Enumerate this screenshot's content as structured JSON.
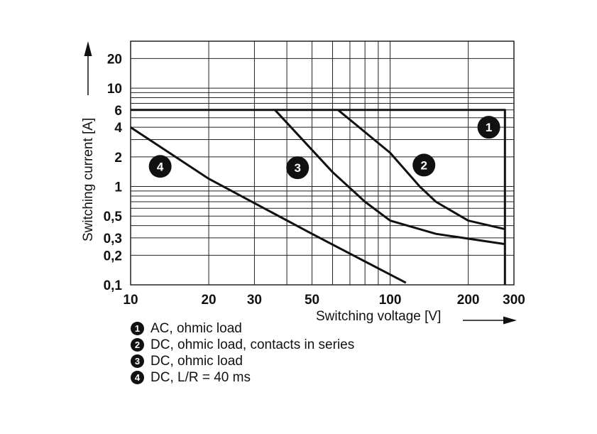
{
  "chart_data": {
    "type": "line",
    "title": "",
    "xlabel": "Switching voltage [V]",
    "ylabel": "Switching current [A]",
    "xscale": "log",
    "yscale": "log",
    "xlim": [
      10,
      300
    ],
    "ylim": [
      0.1,
      30
    ],
    "x_ticks": [
      10,
      20,
      30,
      50,
      100,
      200,
      300
    ],
    "x_tick_labels": [
      "10",
      "20",
      "30",
      "50",
      "100",
      "200",
      "300"
    ],
    "y_ticks": [
      0.1,
      0.2,
      0.3,
      0.5,
      1,
      2,
      4,
      6,
      10,
      20
    ],
    "y_tick_labels": [
      "0,1",
      "0,2",
      "0,3",
      "0,5",
      "1",
      "2",
      "4",
      "6",
      "10",
      "20"
    ],
    "x_grid": [
      10,
      20,
      30,
      40,
      50,
      60,
      70,
      80,
      90,
      100,
      200,
      300
    ],
    "y_grid": [
      0.1,
      0.2,
      0.3,
      0.4,
      0.5,
      0.6,
      0.7,
      0.8,
      0.9,
      1,
      2,
      3,
      4,
      5,
      6,
      7,
      8,
      9,
      10,
      20,
      30
    ],
    "grid": true,
    "series": [
      {
        "name": "1",
        "label": "AC, ohmic load",
        "x": [
          10,
          277,
          277
        ],
        "y": [
          6,
          6,
          0.1
        ]
      },
      {
        "name": "2",
        "label": "DC, ohmic load, contacts in series",
        "x": [
          63,
          100,
          130,
          150,
          200,
          275
        ],
        "y": [
          6,
          2.2,
          1,
          0.7,
          0.45,
          0.37
        ]
      },
      {
        "name": "3",
        "label": "DC, ohmic load",
        "x": [
          36,
          60,
          80,
          100,
          150,
          275
        ],
        "y": [
          6,
          1.4,
          0.7,
          0.45,
          0.33,
          0.26
        ]
      },
      {
        "name": "4",
        "label": "DC, L/R = 40 ms",
        "x": [
          10,
          20,
          50,
          115
        ],
        "y": [
          4,
          1.2,
          0.33,
          0.105
        ]
      }
    ],
    "annotations": [
      {
        "text": "1",
        "x": 240,
        "y": 4
      },
      {
        "text": "2",
        "x": 135,
        "y": 1.65
      },
      {
        "text": "3",
        "x": 44,
        "y": 1.55
      },
      {
        "text": "4",
        "x": 13,
        "y": 1.6
      }
    ],
    "legend_position": "bottom"
  },
  "legend": [
    {
      "number": "1",
      "text": "AC, ohmic load"
    },
    {
      "number": "2",
      "text": "DC, ohmic load, contacts in series"
    },
    {
      "number": "3",
      "text": "DC, ohmic load"
    },
    {
      "number": "4",
      "text": "DC, L/R = 40 ms"
    }
  ]
}
